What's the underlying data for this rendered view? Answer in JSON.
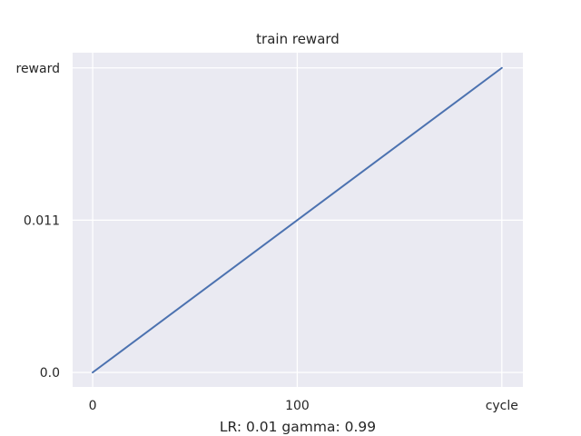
{
  "chart_data": {
    "type": "line",
    "title": "train reward",
    "xlabel": "LR: 0.01 gamma: 0.99",
    "ylabel": "",
    "x_ticks": [
      {
        "value": 0,
        "label": "0"
      },
      {
        "value": 100,
        "label": "100"
      },
      {
        "value": 200,
        "label": "cycle"
      }
    ],
    "y_ticks": [
      {
        "value": 0.0,
        "label": "0.0"
      },
      {
        "value": 0.011,
        "label": "0.011"
      },
      {
        "value": 0.022,
        "label": "reward"
      }
    ],
    "xlim": [
      -9.8,
      210.3
    ],
    "ylim": [
      -0.00105,
      0.0231
    ],
    "grid": true,
    "series": [
      {
        "x": [
          0,
          200
        ],
        "y": [
          0.0,
          0.022
        ],
        "color": "#4c72b0"
      }
    ]
  },
  "colors": {
    "plot_background": "#eaeaf2",
    "grid": "#ffffff",
    "text": "#262626"
  }
}
